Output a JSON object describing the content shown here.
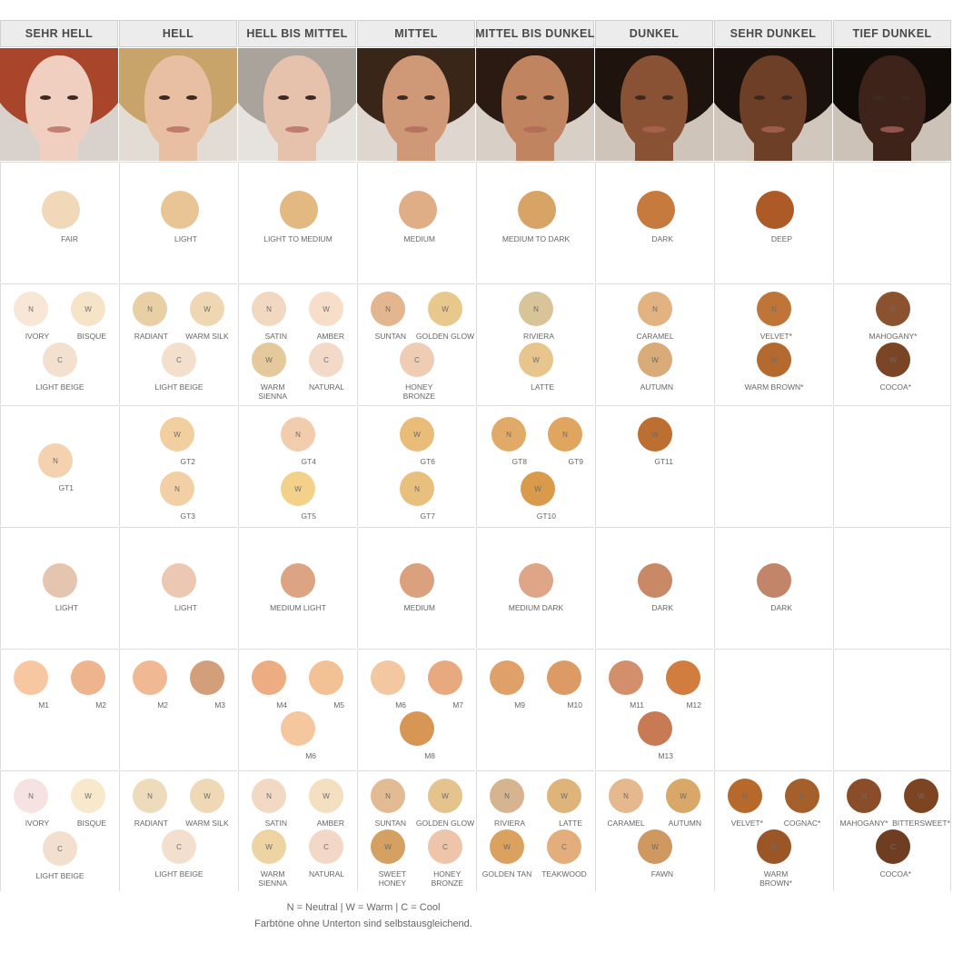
{
  "columns": [
    "SEHR HELL",
    "HELL",
    "HELL BIS MITTEL",
    "MITTEL",
    "MITTEL BIS DUNKEL",
    "DUNKEL",
    "SEHR DUNKEL",
    "TIEF DUNKEL"
  ],
  "photos": [
    {
      "skin": "#f0cfc0",
      "hair": "#a8452a",
      "bg": "#d9d2cc"
    },
    {
      "skin": "#e9bfa3",
      "hair": "#c9a46a",
      "bg": "#e2dcd5"
    },
    {
      "skin": "#e6c1ab",
      "hair": "#a9a39c",
      "bg": "#e6e2dd"
    },
    {
      "skin": "#cf9876",
      "hair": "#3a2519",
      "bg": "#ded6cf"
    },
    {
      "skin": "#c18461",
      "hair": "#2a1a12",
      "bg": "#d8cfc6"
    },
    {
      "skin": "#8a5234",
      "hair": "#1e130d",
      "bg": "#cfc4ba"
    },
    {
      "skin": "#6e3f27",
      "hair": "#1a110c",
      "bg": "#d1c7bd"
    },
    {
      "skin": "#3e231a",
      "hair": "#120c09",
      "bg": "#cdc2b7"
    }
  ],
  "rows": [
    [
      [
        {
          "label": "FAIR",
          "color": "#f0d8b8",
          "x": 65,
          "y": 52,
          "big": true
        }
      ],
      [
        {
          "label": "LIGHT",
          "color": "#e9c596",
          "x": 65,
          "y": 52,
          "big": true
        }
      ],
      [
        {
          "label": "LIGHT TO MEDIUM",
          "color": "#e2b980",
          "x": 65,
          "y": 52,
          "big": true
        }
      ],
      [
        {
          "label": "MEDIUM",
          "color": "#dfae86",
          "x": 65,
          "y": 52,
          "big": true
        }
      ],
      [
        {
          "label": "MEDIUM TO DARK",
          "color": "#d8a465",
          "x": 65,
          "y": 52,
          "big": true
        }
      ],
      [
        {
          "label": "DARK",
          "color": "#c77a3e",
          "x": 65,
          "y": 52,
          "big": true
        }
      ],
      [
        {
          "label": "DEEP",
          "color": "#ad5a27",
          "x": 65,
          "y": 52,
          "big": true
        }
      ],
      []
    ],
    [
      [
        {
          "label": "IVORY",
          "mark": "N",
          "color": "#f8e7d6",
          "x": 33,
          "y": 27
        },
        {
          "label": "BISQUE",
          "mark": "W",
          "color": "#f6e4c8",
          "x": 96,
          "y": 27
        },
        {
          "label": "LIGHT BEIGE",
          "mark": "C",
          "color": "#f3e0cf",
          "x": 65,
          "y": 83
        }
      ],
      [
        {
          "label": "RADIANT",
          "mark": "N",
          "color": "#e8cfa5",
          "x": 33,
          "y": 27
        },
        {
          "label": "WARM SILK",
          "mark": "W",
          "color": "#efd7b4",
          "x": 96,
          "y": 27
        },
        {
          "label": "LIGHT BEIGE",
          "mark": "C",
          "color": "#f3dfcc",
          "x": 65,
          "y": 83
        }
      ],
      [
        {
          "label": "SATIN",
          "mark": "N",
          "color": "#f1d8c0",
          "x": 33,
          "y": 27
        },
        {
          "label": "AMBER",
          "mark": "W",
          "color": "#f7dec9",
          "x": 96,
          "y": 27
        },
        {
          "label": "WARM SIENNA",
          "mark": "W",
          "color": "#e6c89d",
          "x": 33,
          "y": 83
        },
        {
          "label": "NATURAL",
          "mark": "C",
          "color": "#f3d9c8",
          "x": 96,
          "y": 83
        }
      ],
      [
        {
          "label": "SUNTAN",
          "mark": "N",
          "color": "#e3b68f",
          "x": 33,
          "y": 27
        },
        {
          "label": "GOLDEN GLOW",
          "mark": "W",
          "color": "#e8c88c",
          "x": 96,
          "y": 27
        },
        {
          "label": "HONEY BRONZE",
          "mark": "C",
          "color": "#efcdb5",
          "x": 65,
          "y": 83
        }
      ],
      [
        {
          "label": "RIVIERA",
          "mark": "N",
          "color": "#d9c399",
          "x": 65,
          "y": 27
        },
        {
          "label": "LATTE",
          "mark": "W",
          "color": "#e7c58d",
          "x": 65,
          "y": 83
        }
      ],
      [
        {
          "label": "CARAMEL",
          "mark": "N",
          "color": "#e2b381",
          "x": 65,
          "y": 27
        },
        {
          "label": "AUTUMN",
          "mark": "W",
          "color": "#d9ab78",
          "x": 65,
          "y": 83
        }
      ],
      [
        {
          "label": "VELVET*",
          "mark": "N",
          "color": "#bf7438",
          "x": 65,
          "y": 27
        },
        {
          "label": "WARM BROWN*",
          "mark": "W",
          "color": "#b46a2e",
          "x": 65,
          "y": 83
        }
      ],
      [
        {
          "label": "MAHOGANY*",
          "mark": "N",
          "color": "#8b5230",
          "x": 65,
          "y": 27
        },
        {
          "label": "COCOA*",
          "mark": "W",
          "color": "#7a4524",
          "x": 65,
          "y": 83
        }
      ]
    ],
    [
      [
        {
          "label": "GT1",
          "mark": "N",
          "color": "#f5d2af",
          "x": 60,
          "y": 60
        }
      ],
      [
        {
          "label": "GT2",
          "mark": "W",
          "color": "#f2cf9f",
          "x": 63,
          "y": 31
        },
        {
          "label": "GT3",
          "mark": "N",
          "color": "#f3cfa5",
          "x": 63,
          "y": 91
        }
      ],
      [
        {
          "label": "GT4",
          "mark": "N",
          "color": "#f1cdae",
          "x": 65,
          "y": 31
        },
        {
          "label": "GT5",
          "mark": "W",
          "color": "#f3d18a",
          "x": 65,
          "y": 91
        }
      ],
      [
        {
          "label": "GT6",
          "mark": "W",
          "color": "#e9bd78",
          "x": 65,
          "y": 31
        },
        {
          "label": "GT7",
          "mark": "N",
          "color": "#e9bf7e",
          "x": 65,
          "y": 91
        }
      ],
      [
        {
          "label": "GT8",
          "mark": "N",
          "color": "#e2aa67",
          "x": 35,
          "y": 31
        },
        {
          "label": "GT9",
          "mark": "N",
          "color": "#e0a55f",
          "x": 97,
          "y": 31
        },
        {
          "label": "GT10",
          "mark": "W",
          "color": "#d99a4c",
          "x": 67,
          "y": 91
        }
      ],
      [
        {
          "label": "GT11",
          "mark": "W",
          "color": "#bd6e31",
          "x": 65,
          "y": 31
        }
      ],
      [],
      []
    ],
    [
      [
        {
          "label": "LIGHT",
          "color": "#e6c5b0",
          "x": 65,
          "y": 58
        }
      ],
      [
        {
          "label": "LIGHT",
          "color": "#ecc8b3",
          "x": 65,
          "y": 58
        }
      ],
      [
        {
          "label": "MEDIUM LIGHT",
          "color": "#dca482",
          "x": 65,
          "y": 58
        }
      ],
      [
        {
          "label": "MEDIUM",
          "color": "#dba07e",
          "x": 65,
          "y": 58
        }
      ],
      [
        {
          "label": "MEDIUM DARK",
          "color": "#dfa587",
          "x": 65,
          "y": 58
        }
      ],
      [
        {
          "label": "DARK",
          "color": "#c98866",
          "x": 65,
          "y": 58
        }
      ],
      [
        {
          "label": "DARK",
          "color": "#c2856a",
          "x": 65,
          "y": 58
        }
      ],
      []
    ],
    [
      [
        {
          "label": "M1",
          "color": "#f6c7a0",
          "x": 33,
          "y": 31
        },
        {
          "label": "M2",
          "color": "#eeb48e",
          "x": 96,
          "y": 31
        }
      ],
      [
        {
          "label": "M2",
          "color": "#f0b993",
          "x": 33,
          "y": 31
        },
        {
          "label": "M3",
          "color": "#d39f7b",
          "x": 96,
          "y": 31
        }
      ],
      [
        {
          "label": "M4",
          "color": "#eeac82",
          "x": 33,
          "y": 31
        },
        {
          "label": "M5",
          "color": "#f3c196",
          "x": 96,
          "y": 31
        },
        {
          "label": "M6",
          "color": "#f4c79f",
          "x": 65,
          "y": 87
        }
      ],
      [
        {
          "label": "M6",
          "color": "#f3c79f",
          "x": 33,
          "y": 31
        },
        {
          "label": "M7",
          "color": "#e7a97d",
          "x": 96,
          "y": 31
        },
        {
          "label": "M8",
          "color": "#d89655",
          "x": 65,
          "y": 87
        }
      ],
      [
        {
          "label": "M9",
          "color": "#dfa06a",
          "x": 33,
          "y": 31
        },
        {
          "label": "M10",
          "color": "#dc9b64",
          "x": 96,
          "y": 31
        }
      ],
      [
        {
          "label": "M11",
          "color": "#d38f6b",
          "x": 33,
          "y": 31
        },
        {
          "label": "M12",
          "color": "#d17d40",
          "x": 96,
          "y": 31
        },
        {
          "label": "M13",
          "color": "#c87a55",
          "x": 65,
          "y": 87
        }
      ],
      [],
      []
    ],
    [
      [
        {
          "label": "IVORY",
          "mark": "N",
          "color": "#f6e3e1",
          "x": 33,
          "y": 27
        },
        {
          "label": "BISQUE",
          "mark": "W",
          "color": "#f8e8cc",
          "x": 96,
          "y": 27
        },
        {
          "label": "LIGHT BEIGE",
          "mark": "C",
          "color": "#f3dfcd",
          "x": 65,
          "y": 85
        }
      ],
      [
        {
          "label": "RADIANT",
          "mark": "N",
          "color": "#eddbbb",
          "x": 33,
          "y": 27
        },
        {
          "label": "WARM SILK",
          "mark": "W",
          "color": "#eed8b6",
          "x": 96,
          "y": 27
        },
        {
          "label": "LIGHT BEIGE",
          "mark": "C",
          "color": "#f3dfcd",
          "x": 65,
          "y": 83
        }
      ],
      [
        {
          "label": "SATIN",
          "mark": "N",
          "color": "#f1d9c3",
          "x": 33,
          "y": 27
        },
        {
          "label": "AMBER",
          "mark": "W",
          "color": "#f5dfc1",
          "x": 96,
          "y": 27
        },
        {
          "label": "WARM SIENNA",
          "mark": "W",
          "color": "#efd4a3",
          "x": 33,
          "y": 83
        },
        {
          "label": "NATURAL",
          "mark": "C",
          "color": "#f3d8c7",
          "x": 96,
          "y": 83
        }
      ],
      [
        {
          "label": "SUNTAN",
          "mark": "N",
          "color": "#e3bb92",
          "x": 33,
          "y": 27
        },
        {
          "label": "GOLDEN GLOW",
          "mark": "W",
          "color": "#e4c48c",
          "x": 96,
          "y": 27
        },
        {
          "label": "SWEET HONEY",
          "mark": "W",
          "color": "#d5a163",
          "x": 33,
          "y": 83
        },
        {
          "label": "HONEY BRONZE",
          "mark": "C",
          "color": "#eec5ab",
          "x": 96,
          "y": 83
        }
      ],
      [
        {
          "label": "RIVIERA",
          "mark": "N",
          "color": "#d6b48f",
          "x": 33,
          "y": 27
        },
        {
          "label": "LATTE",
          "mark": "W",
          "color": "#dfb47b",
          "x": 96,
          "y": 27
        },
        {
          "label": "GOLDEN TAN",
          "mark": "W",
          "color": "#dba25f",
          "x": 33,
          "y": 83
        },
        {
          "label": "TEAKWOOD",
          "mark": "C",
          "color": "#e4ad7c",
          "x": 96,
          "y": 83
        }
      ],
      [
        {
          "label": "CARAMEL",
          "mark": "N",
          "color": "#e5b88d",
          "x": 33,
          "y": 27
        },
        {
          "label": "AUTUMN",
          "mark": "W",
          "color": "#d9a767",
          "x": 96,
          "y": 27
        },
        {
          "label": "FAWN",
          "mark": "W",
          "color": "#cf9861",
          "x": 65,
          "y": 83
        }
      ],
      [
        {
          "label": "VELVET*",
          "mark": "N",
          "color": "#b7692c",
          "x": 33,
          "y": 27
        },
        {
          "label": "COGNAC*",
          "mark": "W",
          "color": "#a45f2a",
          "x": 96,
          "y": 27
        },
        {
          "label": "WARM BROWN*",
          "mark": "W",
          "color": "#9a5626",
          "x": 65,
          "y": 83
        }
      ],
      [
        {
          "label": "MAHOGANY*",
          "mark": "N",
          "color": "#8a4d2a",
          "x": 33,
          "y": 27
        },
        {
          "label": "BITTERSWEET*",
          "mark": "W",
          "color": "#7c4420",
          "x": 96,
          "y": 27
        },
        {
          "label": "COCOA*",
          "mark": "C",
          "color": "#6e3d22",
          "x": 65,
          "y": 83
        }
      ]
    ]
  ],
  "legend": {
    "line1": "N = Neutral  |  W = Warm  |  C = Cool",
    "line2": "Farbtöne ohne Unterton sind selbstausgleichend."
  }
}
